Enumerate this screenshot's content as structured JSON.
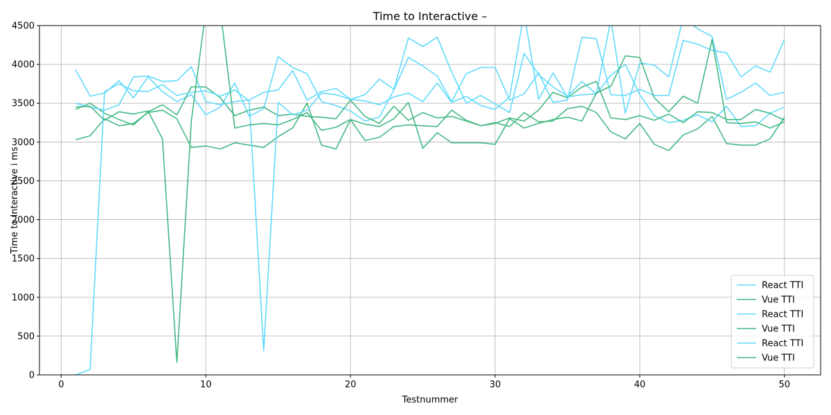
{
  "chart_data": {
    "type": "line",
    "title": "Time to Interactive  –",
    "xlabel": "Testnummer",
    "ylabel": "Time to Interactive  i ms",
    "xlim": [
      -1.5,
      52.5
    ],
    "ylim": [
      0,
      4500
    ],
    "xticks": [
      0,
      10,
      20,
      30,
      40,
      50
    ],
    "yticks": [
      0,
      500,
      1000,
      1500,
      2000,
      2500,
      3000,
      3500,
      4000,
      4500
    ],
    "grid": true,
    "legend_position": "lower-right",
    "x": [
      1,
      2,
      3,
      4,
      5,
      6,
      7,
      8,
      9,
      10,
      11,
      12,
      13,
      14,
      15,
      16,
      17,
      18,
      19,
      20,
      21,
      22,
      23,
      24,
      25,
      26,
      27,
      28,
      29,
      30,
      31,
      32,
      33,
      34,
      35,
      36,
      37,
      38,
      39,
      40,
      41,
      42,
      43,
      44,
      45,
      46,
      47,
      48,
      49,
      50
    ],
    "series": [
      {
        "name": "React TTI",
        "color": "#61dafb",
        "values": [
          3930,
          3590,
          3630,
          3790,
          3570,
          3840,
          3650,
          3520,
          3610,
          3350,
          3450,
          3760,
          3330,
          3430,
          4100,
          3960,
          3880,
          3520,
          3470,
          3400,
          3270,
          3320,
          3670,
          4090,
          3980,
          3850,
          3520,
          3880,
          3960,
          3960,
          3540,
          3620,
          3890,
          3510,
          3540,
          4350,
          4330,
          3610,
          3600,
          3680,
          3600,
          3600,
          4310,
          4260,
          4180,
          4150,
          3840,
          3980,
          3900,
          4320
        ]
      },
      {
        "name": "Vue TTI",
        "color": "#42b883",
        "values": [
          3420,
          3500,
          3370,
          3290,
          3220,
          3390,
          3480,
          3350,
          3710,
          3710,
          3570,
          3340,
          3410,
          3450,
          3340,
          3360,
          3330,
          3320,
          3300,
          3540,
          3330,
          3240,
          3460,
          3280,
          3380,
          3310,
          3330,
          3270,
          3210,
          3250,
          3200,
          3380,
          3260,
          3270,
          3430,
          3460,
          3380,
          3130,
          3040,
          3240,
          2970,
          2890,
          3090,
          3170,
          3330,
          2980,
          2960,
          2960,
          3040,
          3320
        ]
      },
      {
        "name": "React TTI",
        "color": "#61dafb",
        "values": [
          3500,
          3450,
          3410,
          3480,
          3840,
          3850,
          3780,
          3790,
          3970,
          3520,
          3480,
          3520,
          3540,
          3640,
          3670,
          3920,
          3540,
          3650,
          3690,
          3550,
          3610,
          3810,
          3680,
          4340,
          4230,
          4350,
          3900,
          3500,
          3600,
          3490,
          3380,
          4140,
          3870,
          3710,
          3590,
          3780,
          3620,
          3860,
          4000,
          3610,
          3340,
          3250,
          3280,
          3350,
          3260,
          3460,
          3200,
          3210,
          3370,
          3450
        ]
      },
      {
        "name": "Vue TTI",
        "color": "#42b883",
        "values": [
          3030,
          3080,
          3300,
          3210,
          3240,
          3380,
          3410,
          3300,
          2930,
          2950,
          2910,
          2990,
          2960,
          2930,
          3070,
          3180,
          3500,
          2960,
          2910,
          3290,
          3020,
          3060,
          3200,
          3220,
          3210,
          3200,
          3410,
          3280,
          3210,
          3240,
          3310,
          3270,
          3410,
          3640,
          3570,
          3710,
          3780,
          3310,
          3290,
          3340,
          3280,
          3360,
          3250,
          3390,
          3380,
          3290,
          3290,
          3420,
          3370,
          3280
        ]
      },
      {
        "name": "React TTI",
        "color": "#61dafb",
        "values": [
          0,
          70,
          3650,
          3750,
          3660,
          3650,
          3740,
          3600,
          3640,
          3660,
          3590,
          3670,
          3530,
          310,
          3510,
          3350,
          3410,
          3630,
          3610,
          3550,
          3530,
          3480,
          3580,
          3630,
          3520,
          3760,
          3510,
          3590,
          3470,
          3420,
          3580,
          4660,
          3550,
          3890,
          3580,
          3610,
          3620,
          4580,
          3370,
          4020,
          3990,
          3840,
          4600,
          4460,
          4360,
          3550,
          3640,
          3760,
          3600,
          3640
        ]
      },
      {
        "name": "Vue TTI",
        "color": "#42b883",
        "values": [
          3450,
          3460,
          3280,
          3390,
          3360,
          3400,
          3040,
          160,
          3270,
          4700,
          4700,
          3180,
          3220,
          3240,
          3220,
          3290,
          3380,
          3150,
          3190,
          3290,
          3230,
          3200,
          3300,
          3510,
          2920,
          3120,
          2990,
          2990,
          2990,
          2970,
          3300,
          3180,
          3240,
          3290,
          3320,
          3270,
          3630,
          3720,
          4110,
          4090,
          3570,
          3390,
          3590,
          3500,
          4320,
          3250,
          3240,
          3260,
          3180,
          3260
        ]
      }
    ]
  }
}
